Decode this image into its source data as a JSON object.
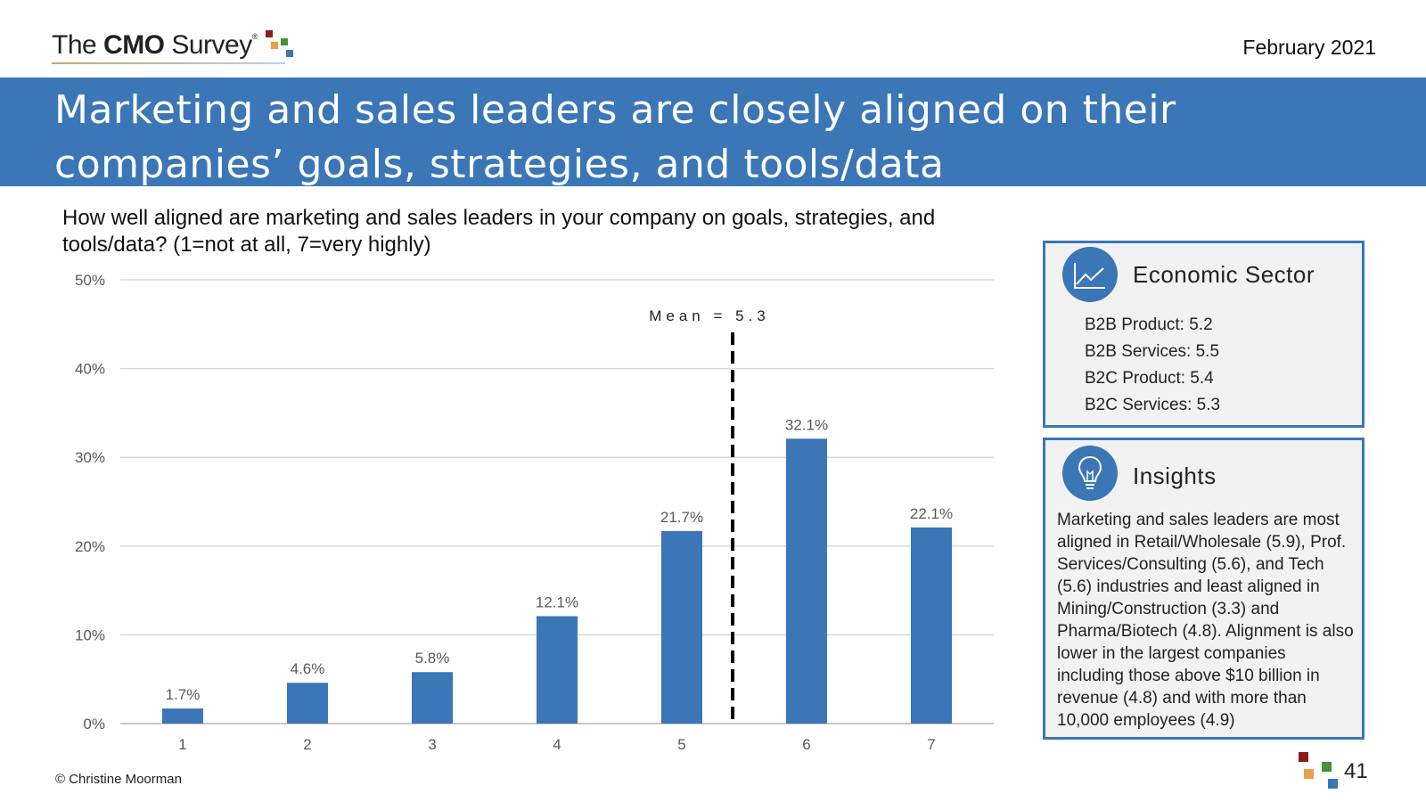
{
  "logo": {
    "text_pre": "The ",
    "text_bold": "CMO",
    "text_post": " Survey",
    "reg_mark": "®"
  },
  "date": "February 2021",
  "title": "Marketing and sales leaders are closely aligned on their companies’ goals, strategies, and tools/data",
  "question": "How well aligned are marketing and sales leaders in your company on goals, strategies, and tools/data? (1=not at all, 7=very highly)",
  "chart_data": {
    "type": "bar",
    "categories": [
      "1",
      "2",
      "3",
      "4",
      "5",
      "6",
      "7"
    ],
    "values": [
      1.7,
      4.6,
      5.8,
      12.1,
      21.7,
      32.1,
      22.1
    ],
    "value_labels": [
      "1.7%",
      "4.6%",
      "5.8%",
      "12.1%",
      "21.7%",
      "32.1%",
      "22.1%"
    ],
    "y_ticks": [
      0,
      10,
      20,
      30,
      40,
      50
    ],
    "y_tick_labels": [
      "0%",
      "10%",
      "20%",
      "30%",
      "40%",
      "50%"
    ],
    "ylim": [
      0,
      50
    ],
    "grid": true,
    "mean": {
      "value": 5.3,
      "label": "Mean = 5.3"
    },
    "bar_color": "#3b76b7"
  },
  "sector_panel": {
    "title": "Economic Sector",
    "icon": "line-chart-icon",
    "items": [
      "B2B Product: 5.2",
      "B2B Services: 5.5",
      "B2C Product: 5.4",
      "B2C Services: 5.3"
    ]
  },
  "insights_panel": {
    "title": "Insights",
    "icon": "lightbulb-icon",
    "text": "Marketing and sales leaders are most aligned in Retail/Wholesale (5.9), Prof. Services/Consulting (5.6), and Tech (5.6) industries and least aligned in Mining/Construction (3.3) and Pharma/Biotech (4.8). Alignment is also lower in the largest companies including those above $10 billion in revenue (4.8) and with more than 10,000 employees (4.9)"
  },
  "footer": {
    "copyright": "© Christine Moorman",
    "page_number": "41"
  },
  "colors": {
    "brand_blue": "#3b76b7",
    "panel_bg": "#f2f2f2"
  }
}
